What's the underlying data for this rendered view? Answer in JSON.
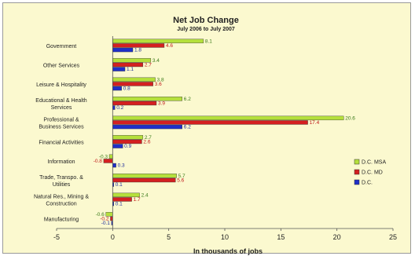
{
  "chart_data": {
    "type": "bar",
    "orientation": "horizontal",
    "title": "Net Job Change",
    "subtitle": "July 2006 to July 2007",
    "xlabel": "In thousands of jobs",
    "ylabel": "",
    "xlim": [
      -5,
      25
    ],
    "xticks": [
      -5,
      0,
      5,
      10,
      15,
      20,
      25
    ],
    "grid": false,
    "legend_position": "right",
    "categories": [
      [
        "Government"
      ],
      [
        "Other Services"
      ],
      [
        "Leisure & Hospitality"
      ],
      [
        "Educational & Health",
        "Services"
      ],
      [
        "Professional &",
        "Business Services"
      ],
      [
        "Financial Activities"
      ],
      [
        "Information"
      ],
      [
        "Trade, Transpo. &",
        "Utilities"
      ],
      [
        "Natural Res., Mining &",
        "Construction"
      ],
      [
        "Manufacturing"
      ]
    ],
    "series": [
      {
        "name": "D.C. MSA",
        "color": "#b5e03c",
        "values": [
          8.1,
          3.4,
          3.8,
          6.2,
          20.6,
          2.7,
          -0.3,
          5.7,
          2.4,
          -0.6
        ]
      },
      {
        "name": "D.C. MD",
        "color": "#d42020",
        "values": [
          4.6,
          2.7,
          3.6,
          3.9,
          17.4,
          2.6,
          -0.8,
          5.6,
          1.7,
          -0.2
        ]
      },
      {
        "name": "D.C.",
        "color": "#1f2fc8",
        "values": [
          1.8,
          1.1,
          0.8,
          0.2,
          6.2,
          0.9,
          0.3,
          0.1,
          0.1,
          -0.1
        ]
      }
    ],
    "labels": [
      [
        "8.1",
        "3.4",
        "3.8",
        "6.2",
        "20.6",
        "2.7",
        "-0.3",
        "5.7",
        "2.4",
        "-0.6"
      ],
      [
        "4.6",
        "2.7",
        "3.6",
        "3.9",
        "17.4",
        "2.6",
        "-0.8",
        "5.6",
        "1.7",
        "-0.2"
      ],
      [
        "1.8",
        "1.1",
        "0.8",
        "0.2",
        "6.2",
        "0.9",
        "0.3",
        "0.1",
        "0.1",
        "-0.1"
      ]
    ],
    "label_colors": [
      "#3a7a1a",
      "#c01818",
      "#1b2a9c"
    ]
  }
}
